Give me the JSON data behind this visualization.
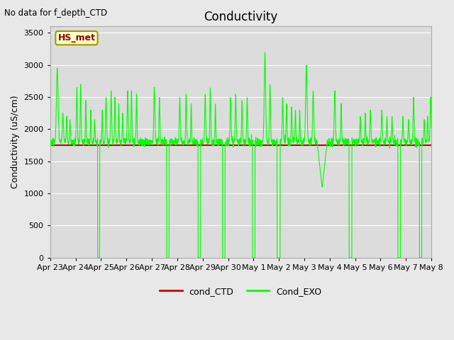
{
  "title": "Conductivity",
  "ylabel": "Conductivity (uS/cm)",
  "no_data_text": "No data for f_depth_CTD",
  "station_label": "HS_met",
  "ylim": [
    0,
    3600
  ],
  "yticks": [
    0,
    500,
    1000,
    1500,
    2000,
    2500,
    3000,
    3500
  ],
  "cond_CTD_value": 1750,
  "fig_facecolor": "#e8e8e8",
  "plot_bg_color": "#dcdcdc",
  "green_line_color": "#00ff00",
  "red_line_color": "#cc0000",
  "legend_labels": [
    "cond_CTD",
    "Cond_EXO"
  ],
  "x_labels": [
    "Apr 23",
    "Apr 24",
    "Apr 25",
    "Apr 26",
    "Apr 27",
    "Apr 28",
    "Apr 29",
    "Apr 30",
    "May 1",
    "May 2",
    "May 3",
    "May 4",
    "May 5",
    "May 6",
    "May 7",
    "May 8"
  ],
  "figsize": [
    6.4,
    4.8
  ],
  "dpi": 100
}
